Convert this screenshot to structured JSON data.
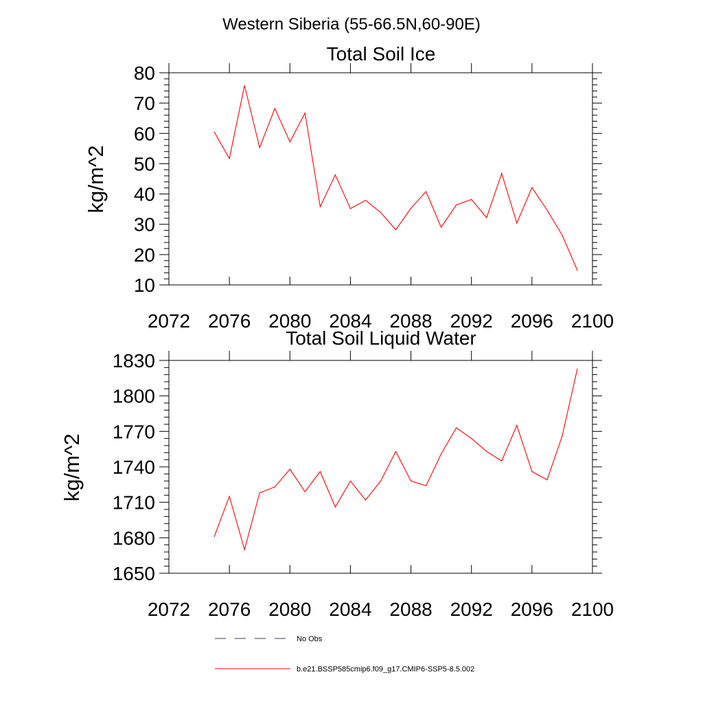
{
  "figure": {
    "suptitle": "Western Siberia (55-66.5N,60-90E)"
  },
  "chart_data": [
    {
      "type": "line",
      "title": "Total Soil Ice",
      "xlabel": "",
      "ylabel": "kg/m^2",
      "xlim": [
        2072,
        2100
      ],
      "ylim": [
        10,
        80
      ],
      "xticks": [
        2072,
        2076,
        2080,
        2084,
        2088,
        2092,
        2096,
        2100
      ],
      "yticks": [
        10,
        20,
        30,
        40,
        50,
        60,
        70,
        80
      ],
      "x": [
        2075,
        2076,
        2077,
        2078,
        2079,
        2080,
        2081,
        2082,
        2083,
        2084,
        2085,
        2086,
        2087,
        2088,
        2089,
        2090,
        2091,
        2092,
        2093,
        2094,
        2095,
        2096,
        2097,
        2098,
        2099
      ],
      "series": [
        {
          "name": "b.e21.BSSP585cmip6.f09_g17.CMIP6-SSP5-8.5.002",
          "color": "#ff0000",
          "values": [
            60.5,
            51.7,
            75.8,
            55.3,
            68.2,
            57.2,
            66.7,
            35.8,
            46.3,
            35.2,
            37.9,
            33.9,
            28.2,
            35.3,
            40.8,
            29.0,
            36.4,
            38.2,
            32.2,
            46.8,
            30.4,
            42.1,
            34.7,
            26.4,
            14.8
          ]
        }
      ],
      "grid": false
    },
    {
      "type": "line",
      "title": "Total Soil Liquid Water",
      "xlabel": "",
      "ylabel": "kg/m^2",
      "xlim": [
        2072,
        2100
      ],
      "ylim": [
        1650,
        1830
      ],
      "xticks": [
        2072,
        2076,
        2080,
        2084,
        2088,
        2092,
        2096,
        2100
      ],
      "yticks": [
        1650,
        1680,
        1710,
        1740,
        1770,
        1800,
        1830
      ],
      "x": [
        2075,
        2076,
        2077,
        2078,
        2079,
        2080,
        2081,
        2082,
        2083,
        2084,
        2085,
        2086,
        2087,
        2088,
        2089,
        2090,
        2091,
        2092,
        2093,
        2094,
        2095,
        2096,
        2097,
        2098,
        2099
      ],
      "series": [
        {
          "name": "b.e21.BSSP585cmip6.f09_g17.CMIP6-SSP5-8.5.002",
          "color": "#ff0000",
          "values": [
            1681,
            1715,
            1670,
            1718,
            1723,
            1738,
            1719,
            1736,
            1706,
            1728,
            1712,
            1728,
            1753,
            1728,
            1724,
            1751,
            1773,
            1764,
            1753,
            1745,
            1775,
            1736,
            1729,
            1766,
            1823
          ]
        }
      ],
      "grid": false
    }
  ],
  "legend": {
    "placement": "bottom",
    "entries": [
      {
        "label": "No Obs",
        "style": "dashed",
        "color": "#3a3a5c"
      },
      {
        "label": "b.e21.BSSP585cmip6.f09_g17.CMIP6-SSP5-8.5.002",
        "style": "solid",
        "color": "#ff0000"
      }
    ]
  }
}
